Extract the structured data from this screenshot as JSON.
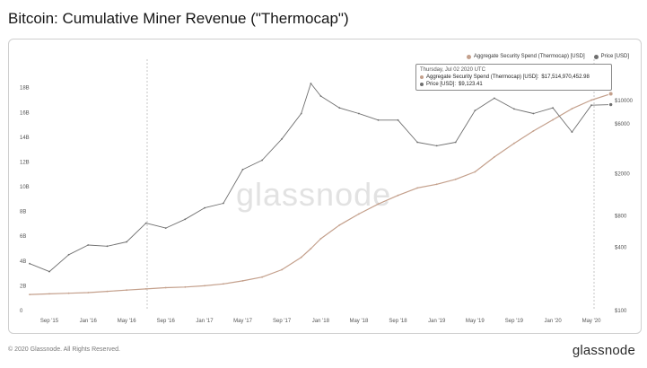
{
  "title": "Bitcoin: Cumulative Miner Revenue (\"Thermocap\")",
  "watermark": "glassnode",
  "footer": {
    "copyright": "© 2020 Glassnode. All Rights Reserved.",
    "logo": "glassnode"
  },
  "legend": [
    {
      "label": "Aggregate Security Spend (Thermocap) [USD]",
      "color": "#c4a08c"
    },
    {
      "label": "Price [USD]",
      "color": "#6f6f6f"
    }
  ],
  "tooltip": {
    "date": "Thursday, Jul 02 2020 UTC",
    "rows": [
      {
        "label": "Aggregate Security Spend (Thermocap) [USD]:",
        "value": "$17,514,970,452.98",
        "color": "#c4a08c"
      },
      {
        "label": "Price [USD]:",
        "value": "$9,123.41",
        "color": "#6f6f6f"
      }
    ]
  },
  "chart_data": {
    "type": "line",
    "x": [
      "2015-07",
      "2015-09",
      "2015-11",
      "2016-01",
      "2016-03",
      "2016-05",
      "2016-07",
      "2016-09",
      "2016-11",
      "2017-01",
      "2017-03",
      "2017-05",
      "2017-07",
      "2017-09",
      "2017-11",
      "2017-12",
      "2018-01",
      "2018-03",
      "2018-05",
      "2018-07",
      "2018-09",
      "2018-11",
      "2019-01",
      "2019-03",
      "2019-05",
      "2019-07",
      "2019-09",
      "2019-11",
      "2020-01",
      "2020-03",
      "2020-05",
      "2020-07"
    ],
    "series": [
      {
        "name": "Aggregate Security Spend (Thermocap) [USD]",
        "axis": "left",
        "color": "#c4a08c",
        "values": [
          1.3,
          1.35,
          1.4,
          1.45,
          1.55,
          1.65,
          1.75,
          1.85,
          1.9,
          2.0,
          2.15,
          2.4,
          2.7,
          3.3,
          4.3,
          5.0,
          5.8,
          6.9,
          7.8,
          8.6,
          9.3,
          9.9,
          10.2,
          10.6,
          11.2,
          12.4,
          13.5,
          14.5,
          15.4,
          16.3,
          17.0,
          17.5
        ]
      },
      {
        "name": "Price [USD]",
        "axis": "right",
        "color": "#6f6f6f",
        "values": [
          280,
          235,
          340,
          420,
          410,
          450,
          680,
          610,
          740,
          950,
          1050,
          2200,
          2700,
          4300,
          7500,
          14500,
          11000,
          8500,
          7500,
          6500,
          6500,
          4000,
          3700,
          4000,
          8000,
          10500,
          8300,
          7500,
          8500,
          5000,
          9000,
          9123
        ]
      }
    ],
    "left_axis": {
      "ticks": [
        "0",
        "2B",
        "4B",
        "6B",
        "8B",
        "10B",
        "12B",
        "14B",
        "16B",
        "18B"
      ],
      "ylim": [
        0,
        18.7
      ],
      "unit": "billion USD"
    },
    "right_axis": {
      "scale": "log",
      "ticks": [
        "$100",
        "$400",
        "$800",
        "$2000",
        "$6000",
        "$10000"
      ],
      "ylim": [
        100,
        16000
      ]
    },
    "x_ticks": [
      "Sep '15",
      "Jan '16",
      "May '16",
      "Sep '16",
      "Jan '17",
      "May '17",
      "Sep '17",
      "Jan '18",
      "May '18",
      "Sep '18",
      "Jan '19",
      "May '19",
      "Sep '19",
      "Jan '20",
      "May '20"
    ],
    "grid": false,
    "legend_position": "top-right"
  }
}
